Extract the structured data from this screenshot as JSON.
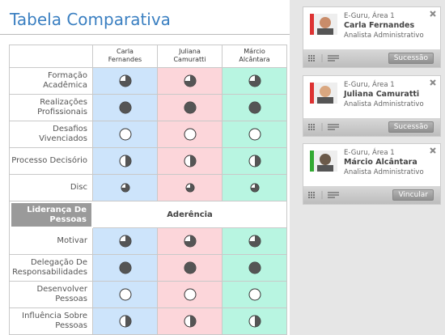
{
  "header": {
    "title": "Tabela Comparativa"
  },
  "table": {
    "columns": [
      "Carla Fernandes",
      "Juliana Camuratti",
      "Márcio Alcântara"
    ],
    "sections": [
      {
        "rows": [
          {
            "label": "Formação Acadêmica",
            "levels": [
              75,
              75,
              75
            ]
          },
          {
            "label": "Realizações Profissionais",
            "levels": [
              100,
              100,
              100
            ]
          },
          {
            "label": "Desafios Vivenciados",
            "levels": [
              0,
              0,
              0
            ]
          },
          {
            "label": "Processo Decisório",
            "levels": [
              50,
              50,
              50
            ]
          },
          {
            "label": "Disc",
            "levels": [
              75,
              75,
              75
            ]
          }
        ]
      },
      {
        "title": "Liderança De Pessoas",
        "subtitle": "Aderência",
        "rows": [
          {
            "label": "Motivar",
            "levels": [
              75,
              75,
              75
            ]
          },
          {
            "label": "Delegação De Responsabilidades",
            "levels": [
              100,
              100,
              100
            ]
          },
          {
            "label": "Desenvolver Pessoas",
            "levels": [
              0,
              0,
              0
            ]
          },
          {
            "label": "Influência Sobre Pessoas",
            "levels": [
              50,
              50,
              50
            ]
          }
        ]
      }
    ]
  },
  "cards": [
    {
      "line1": "E-Guru, Área 1",
      "name": "Carla Fernandes",
      "role": "Analista Administrativo",
      "button": "Sucessão"
    },
    {
      "line1": "E-Guru, Área 1",
      "name": "Juliana Camuratti",
      "role": "Analista Administrativo",
      "button": "Sucessão"
    },
    {
      "line1": "E-Guru, Área 1",
      "name": "Márcio Alcântara",
      "role": "Analista Administrativo",
      "button": "Vincular"
    }
  ]
}
